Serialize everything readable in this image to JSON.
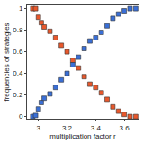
{
  "chart_data": {
    "type": "scatter",
    "x_label": "multiplication factor r",
    "y_label": "frequencies of strategies",
    "x": [
      2.96,
      2.98,
      3.0,
      3.02,
      3.04,
      3.08,
      3.12,
      3.16,
      3.2,
      3.24,
      3.28,
      3.32,
      3.36,
      3.4,
      3.44,
      3.48,
      3.52,
      3.56,
      3.6,
      3.64,
      3.68
    ],
    "series": [
      {
        "color": "#e8582c",
        "marker": "square",
        "values": [
          1,
          1,
          0.92,
          0.87,
          0.83,
          0.79,
          0.73,
          0.66,
          0.6,
          0.52,
          0.45,
          0.37,
          0.3,
          0.27,
          0.22,
          0.16,
          0.09,
          0.05,
          0.02,
          0,
          0
        ]
      },
      {
        "color": "#3a6fd6",
        "marker": "square",
        "values": [
          0,
          0.01,
          0.07,
          0.13,
          0.17,
          0.21,
          0.27,
          0.34,
          0.4,
          0.48,
          0.55,
          0.63,
          0.7,
          0.73,
          0.78,
          0.84,
          0.91,
          0.95,
          0.98,
          1,
          1
        ]
      }
    ],
    "xlim": [
      2.92,
      3.7
    ],
    "xticks": [
      3,
      3.2,
      3.4,
      3.6
    ],
    "ylim": [
      -0.02,
      1.03
    ],
    "yticks": [
      0,
      0.2,
      0.4,
      0.6,
      0.8,
      1
    ],
    "grid": false
  }
}
